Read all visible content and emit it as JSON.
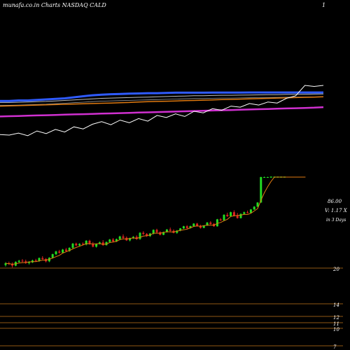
{
  "header": {
    "left_label": "munafa.co.in Charts NASDAQ CALD",
    "right_label": "1"
  },
  "chart_data": [
    {
      "type": "line",
      "panel": "moving-averages",
      "series": [
        {
          "color": "#2f5bff",
          "values": [
            0.7,
            0.7,
            0.71,
            0.71,
            0.72,
            0.73,
            0.74,
            0.75,
            0.77,
            0.79,
            0.81,
            0.82,
            0.83,
            0.835,
            0.84,
            0.845,
            0.85,
            0.85,
            0.855,
            0.86,
            0.86,
            0.86,
            0.86,
            0.862,
            0.862,
            0.862,
            0.862,
            0.863,
            0.863,
            0.863,
            0.863,
            0.863,
            0.863,
            0.864,
            0.864,
            0.864
          ]
        },
        {
          "color": "#bbbbbb",
          "values": [
            0.67,
            0.67,
            0.675,
            0.68,
            0.685,
            0.69,
            0.7,
            0.71,
            0.72,
            0.73,
            0.74,
            0.75,
            0.755,
            0.76,
            0.765,
            0.77,
            0.775,
            0.78,
            0.785,
            0.79,
            0.795,
            0.8,
            0.8,
            0.805,
            0.81,
            0.81,
            0.812,
            0.815,
            0.818,
            0.82,
            0.822,
            0.825,
            0.828,
            0.83,
            0.832,
            0.835
          ]
        },
        {
          "color": "#e07a10",
          "values": [
            0.6,
            0.605,
            0.61,
            0.615,
            0.62,
            0.625,
            0.63,
            0.635,
            0.64,
            0.645,
            0.65,
            0.655,
            0.66,
            0.665,
            0.67,
            0.68,
            0.685,
            0.69,
            0.695,
            0.7,
            0.705,
            0.71,
            0.715,
            0.72,
            0.725,
            0.73,
            0.735,
            0.74,
            0.745,
            0.75,
            0.755,
            0.76,
            0.765,
            0.77,
            0.775,
            0.78
          ]
        },
        {
          "color": "#d030d0",
          "values": [
            0.4,
            0.405,
            0.41,
            0.415,
            0.42,
            0.425,
            0.43,
            0.435,
            0.44,
            0.445,
            0.45,
            0.455,
            0.46,
            0.465,
            0.47,
            0.475,
            0.48,
            0.485,
            0.49,
            0.495,
            0.5,
            0.505,
            0.51,
            0.515,
            0.52,
            0.525,
            0.53,
            0.535,
            0.54,
            0.545,
            0.55,
            0.555,
            0.56,
            0.565,
            0.57,
            0.58
          ]
        },
        {
          "color": "#ffffff",
          "values": [
            0.05,
            0.04,
            0.08,
            0.03,
            0.12,
            0.07,
            0.15,
            0.1,
            0.2,
            0.16,
            0.25,
            0.3,
            0.24,
            0.33,
            0.28,
            0.36,
            0.31,
            0.42,
            0.38,
            0.45,
            0.4,
            0.5,
            0.47,
            0.55,
            0.52,
            0.6,
            0.58,
            0.65,
            0.62,
            0.68,
            0.66,
            0.75,
            0.8,
            1.0,
            0.98,
            1.0
          ]
        }
      ]
    },
    {
      "type": "candlestick",
      "panel": "price",
      "y_ticks": [
        "20",
        "14",
        "12",
        "11",
        "10",
        "7"
      ],
      "annotation": {
        "price": "86.00",
        "volume_ratio": "V: 1.17 X",
        "period": "in 3 Days"
      },
      "candles": [
        [
          21.0,
          22.0,
          20.5,
          21.6
        ],
        [
          21.6,
          22.2,
          21.0,
          21.4
        ],
        [
          21.4,
          21.9,
          20.2,
          20.8
        ],
        [
          20.8,
          22.3,
          20.6,
          22.1
        ],
        [
          22.1,
          22.8,
          21.8,
          22.5
        ],
        [
          22.5,
          23.1,
          22.0,
          22.3
        ],
        [
          22.3,
          22.9,
          21.4,
          21.7
        ],
        [
          21.7,
          22.4,
          21.2,
          21.9
        ],
        [
          21.9,
          22.9,
          21.7,
          22.6
        ],
        [
          22.6,
          23.2,
          22.2,
          22.4
        ],
        [
          22.4,
          23.7,
          22.1,
          23.5
        ],
        [
          23.5,
          24.2,
          22.9,
          23.1
        ],
        [
          23.1,
          23.5,
          21.9,
          22.3
        ],
        [
          22.3,
          23.8,
          22.0,
          23.6
        ],
        [
          23.6,
          25.2,
          23.3,
          25.0
        ],
        [
          25.0,
          26.4,
          24.6,
          26.1
        ],
        [
          26.1,
          26.8,
          25.2,
          25.6
        ],
        [
          25.6,
          27.2,
          25.3,
          26.9
        ],
        [
          26.9,
          27.6,
          25.9,
          26.3
        ],
        [
          26.3,
          27.9,
          26.0,
          27.7
        ],
        [
          27.7,
          29.9,
          27.2,
          29.6
        ],
        [
          29.6,
          30.1,
          28.4,
          28.8
        ],
        [
          28.8,
          29.8,
          28.2,
          29.5
        ],
        [
          29.5,
          30.2,
          28.9,
          29.2
        ],
        [
          29.2,
          31.3,
          28.8,
          31.0
        ],
        [
          31.0,
          31.5,
          29.1,
          29.4
        ],
        [
          29.4,
          30.4,
          27.9,
          28.2
        ],
        [
          28.2,
          29.7,
          27.8,
          29.5
        ],
        [
          29.5,
          30.6,
          29.2,
          30.2
        ],
        [
          30.2,
          31.3,
          28.6,
          28.9
        ],
        [
          28.9,
          30.6,
          28.7,
          30.4
        ],
        [
          30.4,
          31.9,
          30.0,
          31.6
        ],
        [
          31.6,
          32.4,
          30.2,
          30.7
        ],
        [
          30.7,
          32.1,
          30.4,
          31.8
        ],
        [
          31.8,
          33.6,
          31.5,
          33.2
        ],
        [
          33.2,
          34.3,
          32.1,
          32.5
        ],
        [
          32.5,
          33.2,
          30.9,
          31.2
        ],
        [
          31.2,
          32.6,
          30.7,
          32.3
        ],
        [
          32.3,
          33.4,
          31.9,
          33.0
        ],
        [
          33.0,
          33.8,
          31.4,
          31.9
        ],
        [
          31.9,
          35.6,
          31.5,
          35.2
        ],
        [
          35.2,
          36.1,
          34.0,
          34.6
        ],
        [
          34.6,
          35.0,
          33.0,
          33.4
        ],
        [
          33.4,
          35.1,
          33.0,
          34.8
        ],
        [
          34.8,
          37.2,
          34.3,
          36.9
        ],
        [
          36.9,
          37.6,
          35.2,
          35.6
        ],
        [
          35.6,
          36.0,
          33.8,
          34.1
        ],
        [
          34.1,
          35.9,
          33.9,
          35.6
        ],
        [
          35.6,
          37.4,
          35.3,
          37.1
        ],
        [
          37.1,
          38.3,
          36.0,
          36.4
        ],
        [
          36.4,
          37.2,
          34.9,
          35.2
        ],
        [
          35.2,
          36.8,
          34.7,
          36.5
        ],
        [
          36.5,
          38.0,
          36.1,
          37.8
        ],
        [
          37.8,
          39.4,
          37.5,
          39.1
        ],
        [
          39.1,
          39.8,
          37.6,
          38.0
        ],
        [
          38.0,
          39.5,
          37.7,
          39.2
        ],
        [
          39.2,
          41.1,
          38.8,
          40.8
        ],
        [
          40.8,
          41.3,
          38.9,
          39.4
        ],
        [
          39.4,
          40.1,
          37.7,
          38.1
        ],
        [
          38.1,
          39.8,
          37.9,
          39.6
        ],
        [
          39.6,
          41.8,
          39.3,
          41.5
        ],
        [
          41.5,
          42.4,
          40.2,
          40.6
        ],
        [
          40.6,
          41.2,
          38.8,
          39.1
        ],
        [
          39.1,
          44.0,
          38.9,
          43.7
        ],
        [
          43.7,
          44.6,
          42.6,
          43.0
        ],
        [
          43.0,
          47.4,
          42.7,
          47.0
        ],
        [
          47.0,
          48.6,
          45.4,
          45.9
        ],
        [
          45.9,
          49.4,
          45.6,
          49.0
        ],
        [
          49.0,
          50.5,
          45.8,
          46.3
        ],
        [
          46.3,
          48.4,
          44.2,
          44.6
        ],
        [
          44.6,
          48.0,
          44.3,
          47.7
        ],
        [
          47.7,
          49.5,
          47.2,
          48.9
        ],
        [
          48.9,
          50.3,
          48.0,
          48.4
        ],
        [
          48.4,
          51.5,
          48.1,
          51.2
        ],
        [
          51.2,
          54.0,
          50.8,
          53.5
        ],
        [
          53.5,
          57.6,
          53.2,
          57.2
        ],
        [
          57.2,
          86.5,
          57.0,
          86.0
        ],
        [
          86.0,
          86.6,
          85.4,
          86.0
        ],
        [
          86.0,
          86.4,
          85.6,
          86.0
        ],
        [
          86.0,
          86.4,
          85.6,
          86.0
        ],
        [
          86.0,
          86.4,
          85.6,
          86.0
        ],
        [
          86.0,
          86.4,
          85.6,
          86.0
        ],
        [
          86.0,
          86.4,
          85.6,
          86.0
        ],
        [
          86.0,
          86.4,
          85.6,
          86.0
        ]
      ],
      "colors": {
        "up": "#22dd22",
        "down": "#dd2222",
        "projection": "#22dd22",
        "ma": "#e07a10",
        "grid": "#c0741c"
      }
    }
  ]
}
